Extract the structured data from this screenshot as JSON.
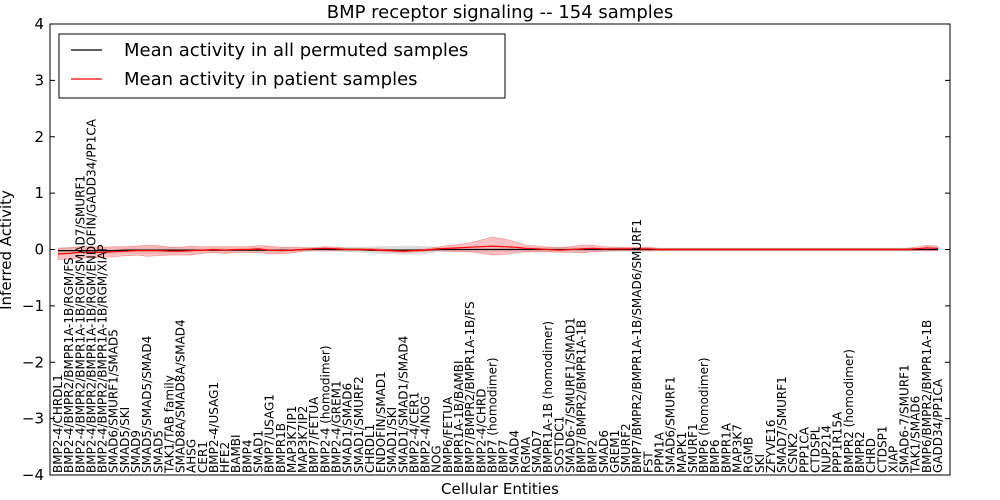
{
  "chart_data": {
    "type": "line",
    "title": "BMP receptor signaling -- 154 samples",
    "xlabel": "Cellular Entities",
    "ylabel": "Inferred Activity",
    "ylim": [
      -4,
      4
    ],
    "yticks": [
      -4,
      -3,
      -2,
      -1,
      0,
      1,
      2,
      3,
      4
    ],
    "ytick_labels": [
      "−4",
      "−3",
      "−2",
      "−1",
      "0",
      "1",
      "2",
      "3",
      "4"
    ],
    "grid": false,
    "legend_position": "top-left",
    "colors": {
      "permuted": "#000000",
      "patient": "#ff0000",
      "patient_band": "#ff9999",
      "permuted_band": "#bbbbbb"
    },
    "series": [
      {
        "name": "Mean activity in all permuted samples",
        "color": "#000000"
      },
      {
        "name": "Mean activity in patient samples",
        "color": "#ff0000"
      }
    ],
    "categories": [
      "BMP2-4/CHRDL1",
      "BMP2-4/BMPR2/BMPR1A-1B/RGM/FS",
      "BMP2-4/BMPR2/BMPR1A-1B/RGM/SMAD7/SMURF1",
      "BMP2-4/BMPR2/BMPR1A-1B/RGM/ENDOFIN/GADD34/PP1CA",
      "BMP2-4/BMPR2/BMPR1A-1B/RGM/XIAP",
      "SMAD6/SMURF1/SMAD5",
      "SMAD5/SKI",
      "SMAD9",
      "SMAD5/SMAD5/SMAD4",
      "SMAD5",
      "TAK1/TAB family",
      "SMAD8A/SMAD8A/SMAD4",
      "AHSG",
      "CER1",
      "BMP2-4/USAG1",
      "HFE2",
      "BAMBI",
      "BMP4",
      "SMAD1",
      "BMP7/USAG1",
      "BMPR1B",
      "MAP3K7IP1",
      "MAP3K7IP2",
      "BMP7/FETUA",
      "BMP2-4 (homodimer)",
      "BMP2-4/GREM1",
      "SMAD1/SMAD6",
      "SMAD1/SMURF2",
      "CHRDL1",
      "ENDOFIN/SMAD1",
      "SMAD1/SKI",
      "SMAD1/SMAD1/SMAD4",
      "BMP2-4/CER1",
      "BMP2-4/NOG",
      "NOG",
      "BMP6/FETUA",
      "BMPR1A-1B/BAMBI",
      "BMP7/BMPR2/BMPR1A-1B/FS",
      "BMP2-4/CHRD",
      "BMP7 (homodimer)",
      "BMP7",
      "SMAD4",
      "RGMA",
      "SMAD7",
      "BMPR1A-1B (homodimer)",
      "SOSTDC1",
      "SMAD6-7/SMURF1/SMAD1",
      "BMP7/BMPR2/BMPR1A-1B",
      "BMP2",
      "SMAD6",
      "GREM1",
      "SMURF2",
      "BMP7/BMPR2/BMPR1A-1B/SMAD6/SMURF1",
      "FST",
      "PPM1A",
      "SMAD6/SMURF1",
      "MAPK1",
      "SMURF1",
      "BMP6 (homodimer)",
      "BMP6",
      "BMPR1A",
      "MAP3K7",
      "RGMB",
      "SKI",
      "ZFYVE16",
      "SMAD7/SMURF1",
      "CSNK2",
      "PPP1CA",
      "CTDSPL",
      "NUP214",
      "PPP1R15A",
      "BMPR2 (homodimer)",
      "BMPR2",
      "CHRD",
      "CTDSP1",
      "XIAP",
      "SMAD6-7/SMURF1",
      "TAK1/SMAD6",
      "BMP6/BMPR2/BMPR1A-1B",
      "GADD34/PP1CA"
    ],
    "permuted_mean": [
      -0.02,
      -0.02,
      -0.02,
      -0.02,
      -0.02,
      -0.02,
      -0.01,
      -0.01,
      -0.01,
      -0.01,
      -0.01,
      -0.01,
      -0.01,
      -0.01,
      -0.01,
      -0.01,
      -0.01,
      -0.01,
      -0.01,
      -0.01,
      -0.01,
      -0.01,
      0.0,
      0.0,
      0.0,
      0.0,
      0.0,
      0.0,
      -0.01,
      -0.01,
      -0.01,
      -0.01,
      -0.01,
      -0.01,
      0.0,
      0.0,
      0.0,
      0.0,
      0.0,
      0.0,
      0.0,
      0.0,
      0.0,
      0.0,
      0.0,
      0.0,
      0.0,
      0.0,
      0.0,
      0.0,
      0.0,
      0.0,
      0.0,
      0.0,
      0.0,
      0.0,
      0.0,
      0.0,
      0.0,
      0.0,
      0.0,
      0.0,
      0.0,
      0.0,
      0.0,
      0.0,
      0.0,
      0.0,
      0.0,
      0.0,
      0.0,
      0.0,
      0.0,
      0.0,
      0.0,
      0.0,
      0.0,
      0.0,
      0.0,
      0.0
    ],
    "permuted_spread": [
      0.06,
      0.06,
      0.06,
      0.06,
      0.06,
      0.06,
      0.06,
      0.07,
      0.07,
      0.07,
      0.06,
      0.06,
      0.05,
      0.05,
      0.06,
      0.06,
      0.05,
      0.05,
      0.06,
      0.06,
      0.05,
      0.05,
      0.04,
      0.04,
      0.04,
      0.04,
      0.05,
      0.05,
      0.06,
      0.07,
      0.07,
      0.08,
      0.08,
      0.07,
      0.05,
      0.05,
      0.05,
      0.05,
      0.05,
      0.06,
      0.05,
      0.05,
      0.05,
      0.05,
      0.05,
      0.05,
      0.05,
      0.06,
      0.05,
      0.04,
      0.04,
      0.04,
      0.04,
      0.04,
      0.03,
      0.03,
      0.03,
      0.03,
      0.03,
      0.03,
      0.03,
      0.03,
      0.03,
      0.03,
      0.03,
      0.03,
      0.03,
      0.03,
      0.03,
      0.03,
      0.03,
      0.03,
      0.03,
      0.03,
      0.03,
      0.03,
      0.03,
      0.03,
      0.03,
      0.03
    ],
    "patient_mean": [
      -0.08,
      -0.07,
      -0.05,
      -0.05,
      -0.05,
      -0.04,
      -0.03,
      -0.02,
      -0.02,
      -0.02,
      -0.03,
      -0.03,
      -0.02,
      -0.01,
      0.0,
      -0.01,
      0.0,
      0.0,
      0.01,
      -0.01,
      -0.02,
      -0.01,
      0.0,
      0.01,
      0.02,
      0.01,
      0.0,
      0.0,
      0.0,
      -0.01,
      -0.02,
      -0.03,
      -0.02,
      -0.01,
      0.01,
      0.02,
      0.03,
      0.04,
      0.05,
      0.06,
      0.05,
      0.04,
      0.02,
      0.01,
      0.0,
      -0.01,
      0.0,
      0.01,
      0.02,
      0.01,
      0.01,
      0.01,
      0.01,
      0.01,
      0.0,
      0.0,
      0.0,
      0.0,
      0.0,
      0.0,
      0.0,
      0.0,
      0.0,
      0.0,
      0.0,
      0.0,
      0.0,
      0.0,
      0.0,
      0.0,
      0.0,
      0.0,
      0.0,
      0.0,
      0.0,
      0.0,
      0.0,
      0.01,
      0.03,
      0.02
    ],
    "patient_spread": [
      0.1,
      0.1,
      0.1,
      0.1,
      0.09,
      0.09,
      0.08,
      0.08,
      0.1,
      0.09,
      0.07,
      0.07,
      0.08,
      0.06,
      0.05,
      0.06,
      0.05,
      0.05,
      0.06,
      0.07,
      0.06,
      0.05,
      0.03,
      0.02,
      0.03,
      0.03,
      0.02,
      0.02,
      0.02,
      0.02,
      0.02,
      0.02,
      0.02,
      0.02,
      0.03,
      0.05,
      0.06,
      0.08,
      0.12,
      0.16,
      0.14,
      0.1,
      0.06,
      0.05,
      0.04,
      0.04,
      0.05,
      0.07,
      0.06,
      0.04,
      0.03,
      0.03,
      0.03,
      0.03,
      0.02,
      0.02,
      0.02,
      0.02,
      0.02,
      0.02,
      0.02,
      0.02,
      0.02,
      0.02,
      0.02,
      0.02,
      0.02,
      0.02,
      0.02,
      0.02,
      0.02,
      0.02,
      0.02,
      0.02,
      0.02,
      0.02,
      0.02,
      0.03,
      0.05,
      0.04
    ]
  }
}
